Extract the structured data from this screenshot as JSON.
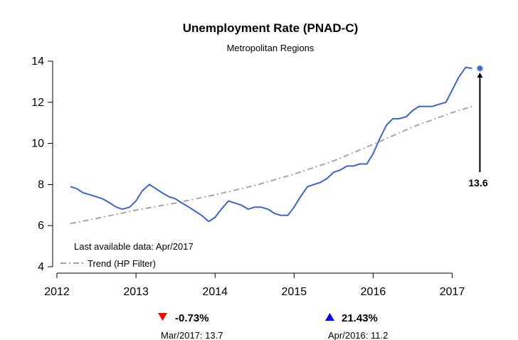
{
  "chart_data": {
    "type": "line",
    "title": "Unemployment Rate (PNAD-C)",
    "subtitle": "Metropolitan Regions",
    "xlabel": "",
    "ylabel": "",
    "xlim": [
      2012,
      2017.4
    ],
    "ylim": [
      4,
      14
    ],
    "x_ticks": [
      "2012",
      "2013",
      "2014",
      "2015",
      "2016",
      "2017"
    ],
    "y_ticks": [
      "4",
      "6",
      "8",
      "10",
      "12",
      "14"
    ],
    "grid": false,
    "colors": {
      "series": "#3a66c8",
      "trend": "#a6a6a6",
      "last_point": "#3a66c8",
      "down": "#ff0000",
      "up": "#0000ff"
    },
    "series": [
      {
        "name": "",
        "x": [
          2012.17,
          2012.25,
          2012.33,
          2012.42,
          2012.5,
          2012.58,
          2012.67,
          2012.75,
          2012.83,
          2012.92,
          2013.0,
          2013.08,
          2013.17,
          2013.25,
          2013.33,
          2013.42,
          2013.5,
          2013.58,
          2013.67,
          2013.75,
          2013.83,
          2013.92,
          2014.0,
          2014.08,
          2014.17,
          2014.25,
          2014.33,
          2014.42,
          2014.5,
          2014.58,
          2014.67,
          2014.75,
          2014.83,
          2014.92,
          2015.0,
          2015.08,
          2015.17,
          2015.25,
          2015.33,
          2015.42,
          2015.5,
          2015.58,
          2015.67,
          2015.75,
          2015.83,
          2015.92,
          2016.0,
          2016.08,
          2016.17,
          2016.25,
          2016.33,
          2016.42,
          2016.5,
          2016.58,
          2016.67,
          2016.75,
          2016.83,
          2016.92,
          2017.0,
          2017.08,
          2017.17,
          2017.25
        ],
        "values": [
          7.9,
          7.8,
          7.6,
          7.5,
          7.4,
          7.3,
          7.1,
          6.9,
          6.8,
          6.9,
          7.2,
          7.7,
          8.0,
          7.8,
          7.6,
          7.4,
          7.3,
          7.1,
          6.9,
          6.7,
          6.5,
          6.2,
          6.4,
          6.8,
          7.2,
          7.1,
          7.0,
          6.8,
          6.9,
          6.9,
          6.8,
          6.6,
          6.5,
          6.5,
          6.9,
          7.4,
          7.9,
          8.0,
          8.1,
          8.3,
          8.6,
          8.7,
          8.9,
          8.9,
          9.0,
          9.0,
          9.5,
          10.2,
          10.9,
          11.2,
          11.2,
          11.3,
          11.6,
          11.8,
          11.8,
          11.8,
          11.9,
          12.0,
          12.6,
          13.2,
          13.7,
          13.65
        ]
      },
      {
        "name": "Trend (HP Filter)",
        "x": [
          2012.17,
          2012.5,
          2013.0,
          2013.5,
          2014.0,
          2014.5,
          2015.0,
          2015.5,
          2016.0,
          2016.5,
          2017.0,
          2017.25
        ],
        "values": [
          6.1,
          6.35,
          6.75,
          7.1,
          7.5,
          7.95,
          8.5,
          9.15,
          9.95,
          10.8,
          11.5,
          11.8
        ]
      }
    ],
    "last_point": {
      "x": 2017.35,
      "value": 13.65
    },
    "last_value_label": "13.6",
    "annotation": "Last available data: Apr/2017",
    "legend": {
      "label": "Trend (HP Filter)",
      "position": "bottom-left"
    },
    "stats": [
      {
        "direction": "down",
        "change": "-0.73%",
        "reference": "Mar/2017: 13.7"
      },
      {
        "direction": "up",
        "change": "21.43%",
        "reference": "Apr/2016: 11.2"
      }
    ]
  }
}
